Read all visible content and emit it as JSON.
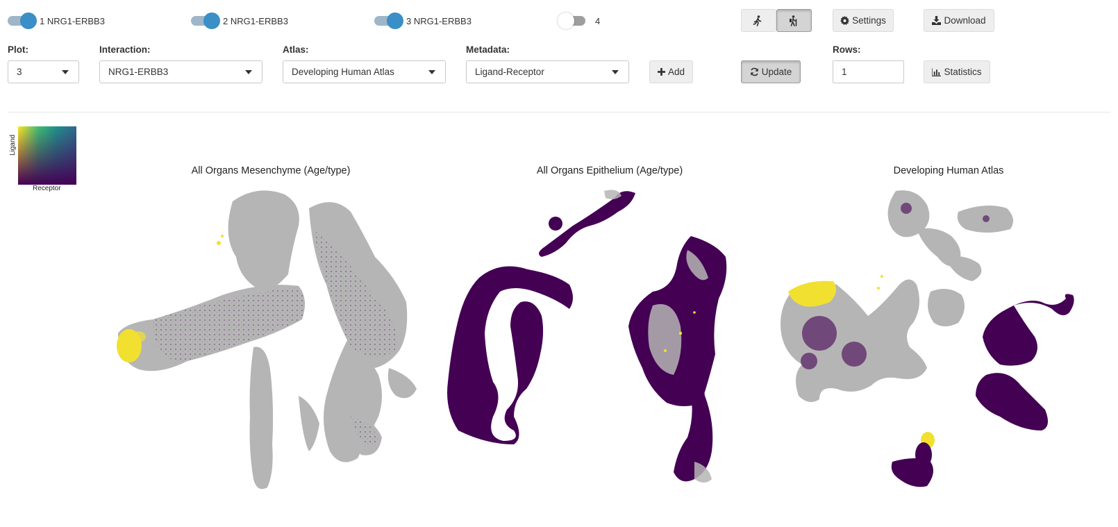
{
  "toggles": [
    {
      "label": "1 NRG1-ERBB3",
      "on": true
    },
    {
      "label": "2 NRG1-ERBB3",
      "on": true
    },
    {
      "label": "3 NRG1-ERBB3",
      "on": true
    },
    {
      "label": "4",
      "on": false
    }
  ],
  "toolbar": {
    "run_icon": "person-running-icon",
    "walk_icon": "person-hiking-icon",
    "settings_label": "Settings",
    "download_label": "Download",
    "add_label": "Add",
    "update_label": "Update",
    "statistics_label": "Statistics"
  },
  "controls": {
    "plot": {
      "label": "Plot:",
      "value": "3"
    },
    "interaction": {
      "label": "Interaction:",
      "value": "NRG1-ERBB3"
    },
    "atlas": {
      "label": "Atlas:",
      "value": "Developing Human Atlas"
    },
    "metadata": {
      "label": "Metadata:",
      "value": "Ligand-Receptor"
    },
    "rows": {
      "label": "Rows:",
      "value": "1"
    }
  },
  "legend": {
    "y_label": "Ligand",
    "x_label": "Receptor"
  },
  "plots": [
    {
      "title": "All Organs Mesenchyme (Age/type)"
    },
    {
      "title": "All Organs Epithelium (Age/type)"
    },
    {
      "title": "Developing Human Atlas"
    }
  ],
  "colors": {
    "toggle_on": "#3a8fc6",
    "grey_cells": "#b5b5b5",
    "purple_cells": "#440154",
    "yellow_cells": "#fde725"
  }
}
